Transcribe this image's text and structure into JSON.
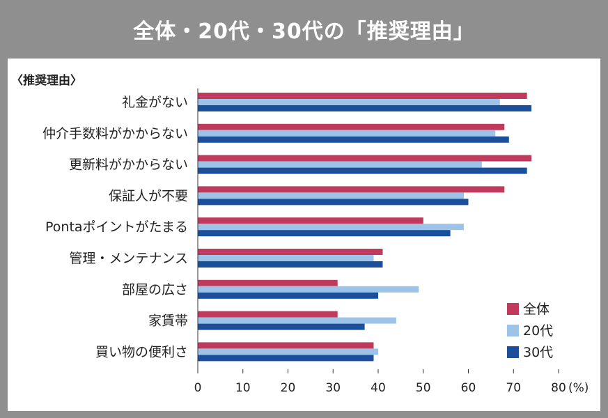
{
  "header": {
    "title": "全体・20代・30代の「推奨理由」"
  },
  "colors": {
    "overall": "#bf3a5c",
    "twenties": "#9ec3e8",
    "thirties": "#1b4f9c",
    "background": "#8f8f90"
  },
  "chart_data": {
    "type": "bar",
    "orientation": "horizontal",
    "title": "全体・20代・30代の「推奨理由」",
    "category_axis_title": "〈推奨理由〉",
    "unit": "(%)",
    "categories": [
      "礼金がない",
      "仲介手数料がかからない",
      "更新料がかからない",
      "保証人が不要",
      "Pontaポイントがたまる",
      "管理・メンテナンス",
      "部屋の広さ",
      "家賃帯",
      "買い物の便利さ"
    ],
    "series": [
      {
        "name": "全体",
        "color": "#bf3a5c",
        "values": [
          73,
          68,
          74,
          68,
          50,
          41,
          31,
          31,
          39
        ]
      },
      {
        "name": "20代",
        "color": "#9ec3e8",
        "values": [
          67,
          66,
          63,
          59,
          59,
          39,
          49,
          44,
          40
        ]
      },
      {
        "name": "30代",
        "color": "#1b4f9c",
        "values": [
          74,
          69,
          73,
          60,
          56,
          41,
          40,
          37,
          39
        ]
      }
    ],
    "xlim": [
      0,
      80
    ],
    "xticks": [
      "0",
      "10",
      "20",
      "30",
      "40",
      "50",
      "60",
      "70",
      "80"
    ],
    "legend_position": "bottom-right"
  }
}
